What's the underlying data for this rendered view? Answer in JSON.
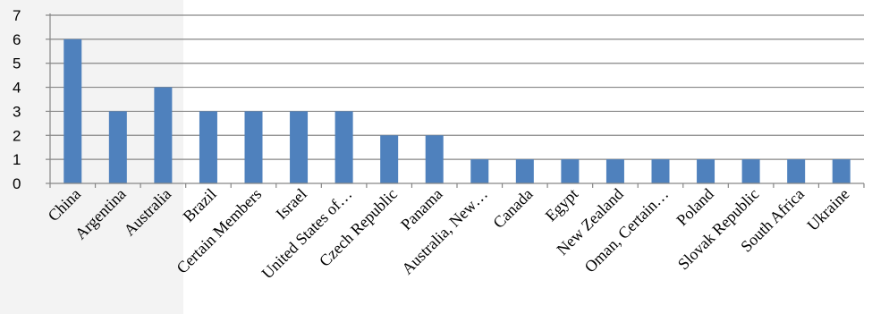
{
  "chart_data": {
    "type": "bar",
    "categories": [
      "China",
      "Argentina",
      "Australia",
      "Brazil",
      "Certain Members",
      "Israel",
      "United States of…",
      "Czech Republic",
      "Panama",
      "Australia, New…",
      "Canada",
      "Egypt",
      "New Zealand",
      "Oman, Certain…",
      "Poland",
      "Slovak Republic",
      "South Africa",
      "Ukraine"
    ],
    "values": [
      6,
      3,
      4,
      3,
      3,
      3,
      3,
      2,
      2,
      1,
      1,
      1,
      1,
      1,
      1,
      1,
      1,
      1
    ],
    "ylim": [
      0,
      7
    ],
    "yticks": [
      "0",
      "1",
      "2",
      "3",
      "4",
      "5",
      "6",
      "7"
    ],
    "grid": true,
    "colors": {
      "bar": "#4f81bd",
      "grid": "#868686",
      "axis": "#868686",
      "watermark": "#f2f2f2"
    }
  }
}
